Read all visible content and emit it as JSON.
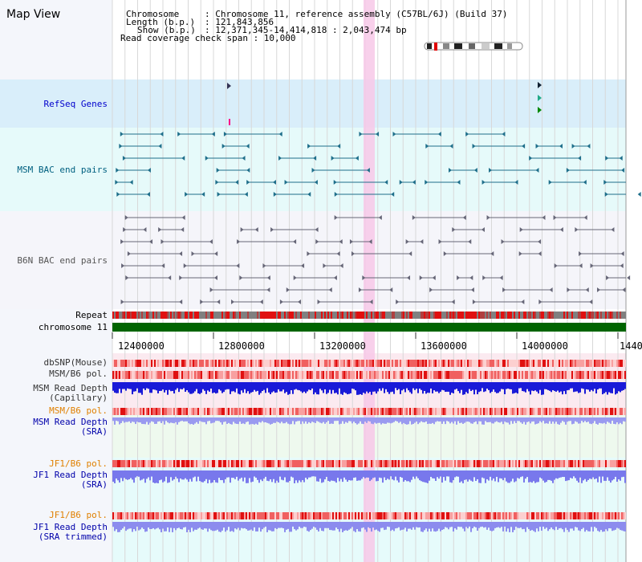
{
  "view_title": "Map View",
  "info": {
    "chromosome_key": "Chromosome",
    "chromosome_val": ": Chromosome 11, reference assembly (C57BL/6J) (Build 37)",
    "length_key": "Length (b.p.)",
    "length_val": ": 121,843,856",
    "show_key": "Show (b.p.)",
    "show_val": ": 12,371,345-14,414,818 : 2,043,474 bp",
    "coverage_line": "Read coverage check span : 10,000"
  },
  "tracks": {
    "refseq": "RefSeq Genes",
    "msm_bac": "MSM BAC end pairs",
    "b6n_bac": "B6N BAC end pairs",
    "repeat": "Repeat",
    "chromosome": "chromosome 11",
    "dbsnp": "dbSNP(Mouse)",
    "msm_b6_pol_1": "MSM/B6 pol.",
    "msm_read_depth_cap_1": "MSM Read Depth",
    "msm_read_depth_cap_2": "(Capillary)",
    "msm_b6_pol_2": "MSM/B6 pol.",
    "msm_read_depth_sra_1": "MSM Read Depth",
    "msm_read_depth_sra_2": "(SRA)",
    "jf1_b6_pol_1": "JF1/B6 pol.",
    "jf1_read_depth_sra_1": "JF1 Read Depth",
    "jf1_read_depth_sra_2": "(SRA)",
    "jf1_b6_pol_2": "JF1/B6 pol.",
    "jf1_read_depth_trim_1": "JF1 Read Depth",
    "jf1_read_depth_trim_2": "(SRA trimmed)"
  },
  "axis_ticks": [
    "12400000",
    "12800000",
    "13200000",
    "13600000",
    "14000000",
    "1440"
  ],
  "colors": {
    "refseq_label": "#0000cc",
    "msm_bac_label": "#006080",
    "b6n_bac_label": "#555555",
    "pol_label": "#e08000",
    "depth_label": "#0000aa",
    "chromosome_bar": "#006400",
    "highlight": "#f7c8e8"
  }
}
